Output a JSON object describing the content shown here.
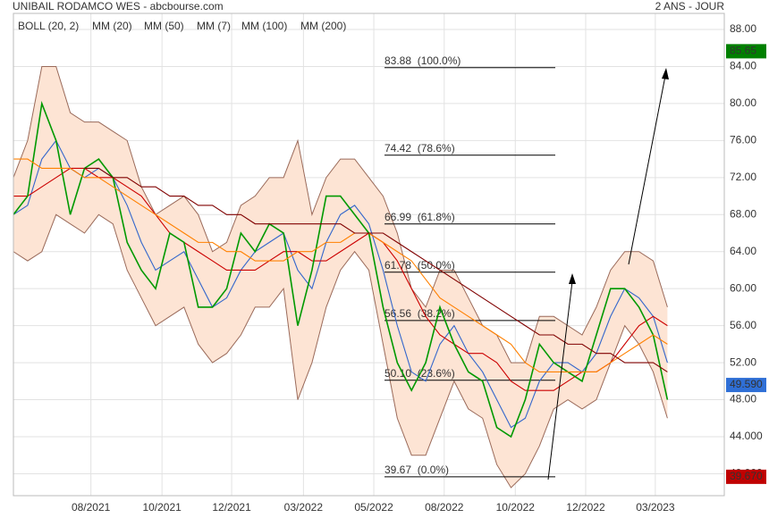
{
  "chart_data": {
    "type": "line",
    "title": "UNIBAIL RODAMCO WES - abcbourse.com",
    "subtitle": "2 ANS - JOUR",
    "x": [
      0,
      2,
      4,
      6,
      8,
      10,
      12,
      14,
      16,
      18,
      20,
      22,
      24,
      26,
      28,
      30,
      32,
      34,
      36,
      38,
      40,
      42,
      44,
      46,
      48,
      50,
      52,
      54,
      56,
      58,
      60,
      62,
      64,
      66,
      68,
      70,
      72,
      74,
      76,
      78,
      80,
      82,
      84,
      86,
      88,
      90,
      92
    ],
    "xlim": [
      0,
      100
    ],
    "xticks": [
      {
        "value": 10.9,
        "label": "08/2021"
      },
      {
        "value": 20.9,
        "label": "10/2021"
      },
      {
        "value": 30.7,
        "label": "12/2021"
      },
      {
        "value": 40.8,
        "label": "03/2022"
      },
      {
        "value": 50.7,
        "label": "05/2022"
      },
      {
        "value": 60.6,
        "label": "08/2022"
      },
      {
        "value": 70.6,
        "label": "10/2022"
      },
      {
        "value": 80.5,
        "label": "12/2022"
      },
      {
        "value": 90.3,
        "label": "03/2023"
      }
    ],
    "ylim": [
      37.63,
      89.74
    ],
    "yticks": [
      {
        "value": 40,
        "label": "40.000"
      },
      {
        "value": 44,
        "label": "44.000"
      },
      {
        "value": 48,
        "label": "48.00"
      },
      {
        "value": 52,
        "label": "52.00"
      },
      {
        "value": 56,
        "label": "56.00"
      },
      {
        "value": 60,
        "label": "60.00"
      },
      {
        "value": 64,
        "label": "64.00"
      },
      {
        "value": 68,
        "label": "68.00"
      },
      {
        "value": 72,
        "label": "72.00"
      },
      {
        "value": 76,
        "label": "76.00"
      },
      {
        "value": 80,
        "label": "80.00"
      },
      {
        "value": 84,
        "label": "84.00"
      },
      {
        "value": 88,
        "label": "88.00"
      }
    ],
    "grid": true,
    "bands": {
      "name": "BOLL (20, 2)",
      "color": "#9a6a5a",
      "fill": "#fde4d4",
      "upper": [
        72,
        76,
        84,
        84,
        79,
        78,
        78,
        77,
        76,
        71,
        68,
        69,
        70,
        68,
        64,
        65,
        69,
        70,
        72,
        72,
        76,
        68,
        72,
        74,
        74,
        72,
        70,
        66,
        60,
        58,
        62,
        62,
        59,
        56,
        55,
        52,
        52,
        57,
        57,
        56,
        55,
        58,
        62,
        64,
        64,
        63,
        58
      ],
      "lower": [
        64,
        63,
        64,
        68,
        67,
        66,
        68,
        67,
        62,
        59,
        56,
        57,
        58,
        54,
        52,
        53,
        55,
        58,
        58,
        60,
        48,
        52,
        58,
        62,
        64,
        62,
        54,
        46,
        42,
        42,
        46,
        50,
        47,
        46,
        41,
        38.5,
        40,
        43,
        47,
        48,
        47,
        48,
        52,
        56,
        54,
        51,
        46
      ]
    },
    "series": [
      {
        "name": "MM (20)",
        "color": "#3366cc",
        "values": [
          68,
          69,
          74,
          76,
          73,
          72,
          73,
          72,
          69,
          65,
          62,
          63,
          64,
          61,
          58,
          59,
          62,
          64,
          65,
          66,
          62,
          60,
          65,
          68,
          69,
          67,
          62,
          56,
          51,
          50,
          54,
          56,
          53,
          51,
          48,
          45,
          46,
          50,
          52,
          52,
          51,
          53,
          57,
          60,
          59,
          57,
          52
        ]
      },
      {
        "name": "MM (50)",
        "color": "#cc0000",
        "values": [
          70,
          70,
          71,
          72,
          73,
          73,
          72,
          72,
          71,
          70,
          68,
          66,
          65,
          64,
          63,
          62,
          62,
          62,
          63,
          64,
          64,
          63,
          63,
          64,
          65,
          66,
          65,
          63,
          60,
          57,
          55,
          54,
          53,
          53,
          52,
          50,
          49,
          49,
          49,
          50,
          51,
          51,
          52,
          54,
          56,
          57,
          56
        ]
      },
      {
        "name": "MM (7)",
        "color": "#009900",
        "values": [
          68,
          70,
          80,
          76,
          68,
          73,
          74,
          72,
          65,
          62,
          60,
          66,
          65,
          58,
          58,
          60,
          66,
          64,
          67,
          66,
          56,
          62,
          70,
          70,
          68,
          66,
          58,
          52,
          49,
          52,
          58,
          54,
          51,
          50,
          45,
          44,
          48,
          54,
          52,
          51,
          50,
          55,
          60,
          60,
          58,
          55,
          48
        ]
      },
      {
        "name": "MM (100)",
        "color": "#ff8000",
        "values": [
          74,
          74,
          73,
          73,
          73,
          72,
          72,
          71,
          70,
          69,
          68,
          67,
          66,
          65,
          65,
          64,
          64,
          63,
          63,
          63,
          64,
          64,
          65,
          65,
          66,
          66,
          65,
          64,
          63,
          61,
          59,
          58,
          57,
          56,
          55,
          54,
          52,
          51,
          51,
          51,
          51,
          51,
          52,
          53,
          54,
          55,
          54
        ]
      },
      {
        "name": "MM (200)",
        "color": "#800000",
        "values": [
          null,
          null,
          null,
          null,
          null,
          73,
          73,
          72,
          72,
          71,
          71,
          70,
          70,
          69,
          69,
          68,
          68,
          67,
          67,
          67,
          67,
          67,
          67,
          67,
          66,
          66,
          66,
          65,
          64,
          63,
          62,
          61,
          60,
          59,
          58,
          57,
          56,
          55,
          55,
          54,
          54,
          53,
          53,
          52,
          52,
          52,
          51
        ]
      }
    ],
    "fibonacci": [
      {
        "value": 83.88,
        "label": "83.88  (100.0%)"
      },
      {
        "value": 74.42,
        "label": "74.42  (78.6%)"
      },
      {
        "value": 66.99,
        "label": "66.99  (61.8%)"
      },
      {
        "value": 61.78,
        "label": "61.78  (50.0%)"
      },
      {
        "value": 56.56,
        "label": "56.56  (38.2%)"
      },
      {
        "value": 50.1,
        "label": "50.10  (23.6%)"
      },
      {
        "value": 39.67,
        "label": "39.67  (0.0%)"
      }
    ],
    "price_labels": [
      {
        "value": 85.65,
        "label": "85.65",
        "color": "#008000"
      },
      {
        "value": 49.59,
        "label": "49.590",
        "color": "#2f6fd6"
      },
      {
        "value": 39.67,
        "label": "39.670",
        "color": "#c00000"
      }
    ]
  }
}
